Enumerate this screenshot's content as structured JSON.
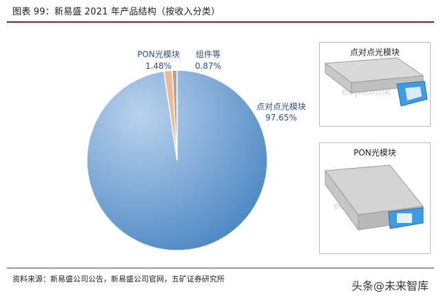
{
  "header": {
    "title": "图表 99：新易盛 2021 年产品结构（按收入分类）"
  },
  "chart_data": {
    "type": "pie",
    "title": "图表 99：新易盛 2021 年产品结构（按收入分类）",
    "slices": [
      {
        "name": "点对点光模块",
        "value": 97.65,
        "label": "97.65%",
        "color": "#5b93cc"
      },
      {
        "name": "PON光模块",
        "value": 1.48,
        "label": "1.48%",
        "color": "#f2b88f"
      },
      {
        "name": "组件等",
        "value": 0.87,
        "label": "0.87%",
        "color": "#a6a6a6"
      }
    ]
  },
  "panels": [
    {
      "title": "点对点光模块",
      "watermark": "eoptolink",
      "accent": "#3f9be3"
    },
    {
      "title": "PON光模块",
      "watermark": "eoptolink",
      "accent": "#3f9be3"
    }
  ],
  "footer": {
    "source": "资料来源：新易盛公司公告，新易盛公司官网，五矿证券研究所",
    "watermark": "头条@未来智库"
  }
}
